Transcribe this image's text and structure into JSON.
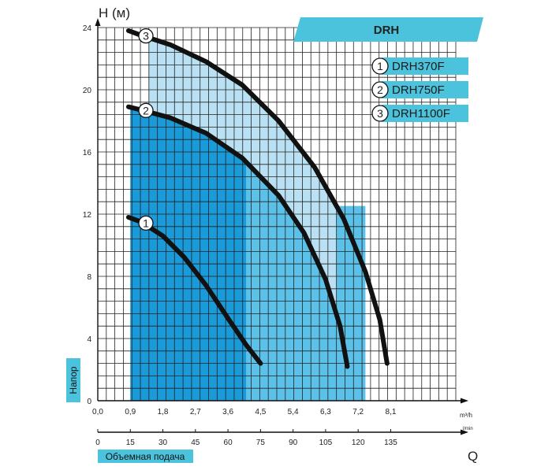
{
  "chart_data": {
    "type": "line",
    "title": "DRH",
    "ylabel": "H (м)",
    "ylabel_side": "Напор",
    "x_primary_unit": "m³/h",
    "x_secondary_unit": "l/min",
    "x_secondary_title": "Q",
    "xlabel": "Объемная подача",
    "xlim": [
      0,
      9.9
    ],
    "ylim": [
      0,
      24
    ],
    "x_ticks": [
      "0,0",
      "0,9",
      "1,8",
      "2,7",
      "3,6",
      "4,5",
      "5,4",
      "6,3",
      "7,2",
      "8,1"
    ],
    "x_tick_values": [
      0,
      0.9,
      1.8,
      2.7,
      3.6,
      4.5,
      5.4,
      6.3,
      7.2,
      8.1
    ],
    "x2_ticks": [
      "0",
      "15",
      "30",
      "45",
      "60",
      "75",
      "90",
      "105",
      "120",
      "135"
    ],
    "x2_tick_values": [
      0,
      15,
      30,
      45,
      60,
      75,
      90,
      105,
      120,
      135
    ],
    "y_ticks": [
      "0",
      "4",
      "8",
      "12",
      "16",
      "20",
      "24"
    ],
    "y_tick_values": [
      0,
      4,
      8,
      12,
      16,
      20,
      24
    ],
    "grid": true,
    "legend_position": "top-right",
    "series": [
      {
        "name": "DRH370F",
        "badge": "1",
        "x": [
          0.85,
          1.2,
          1.8,
          2.4,
          3.0,
          3.6,
          4.1,
          4.5
        ],
        "y": [
          11.8,
          11.5,
          10.6,
          9.2,
          7.4,
          5.3,
          3.6,
          2.4
        ],
        "working_range": [
          0.9,
          4.1
        ]
      },
      {
        "name": "DRH750F",
        "badge": "2",
        "x": [
          0.85,
          1.2,
          2.0,
          3.0,
          4.0,
          5.0,
          5.7,
          6.3,
          6.7,
          6.9
        ],
        "y": [
          18.9,
          18.7,
          18.2,
          17.2,
          15.6,
          13.2,
          10.8,
          7.8,
          4.8,
          2.2
        ],
        "working_range": [
          6.6,
          7.4
        ]
      },
      {
        "name": "DRH1100F",
        "badge": "3",
        "x": [
          0.85,
          1.2,
          2.0,
          3.0,
          4.0,
          5.0,
          6.0,
          6.8,
          7.4,
          7.8,
          8.0
        ],
        "y": [
          23.8,
          23.5,
          22.9,
          21.8,
          20.3,
          18.0,
          15.0,
          11.7,
          8.3,
          5.2,
          2.4
        ],
        "working_range": [
          1.4,
          7.4
        ]
      }
    ],
    "colors": {
      "band_light": "#b9e1f3",
      "band_mid": "#5cc1e9",
      "band_dark": "#1a9ad8",
      "curve": "#111111",
      "accent": "#4cc3dc",
      "grid": "#222222"
    }
  }
}
